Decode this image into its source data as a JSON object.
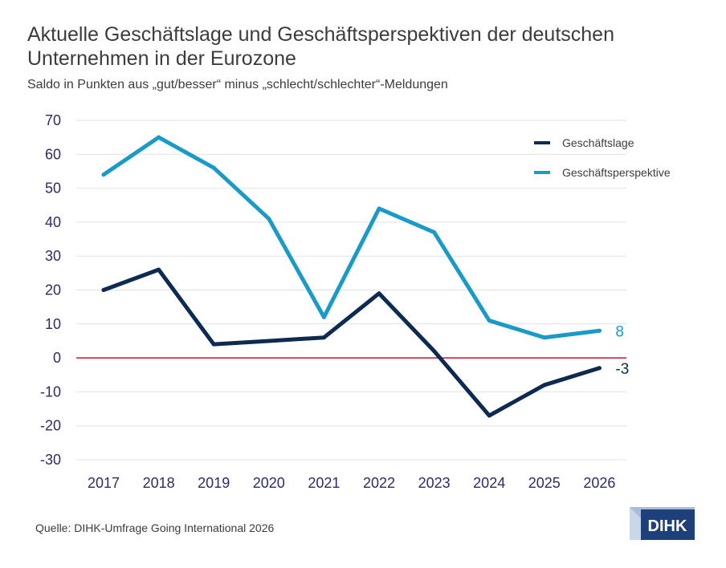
{
  "title": "Aktuelle Geschäftslage und Geschäftsperspektiven der deutschen Unternehmen in der Eurozone",
  "subtitle": "Saldo in Punkten aus „gut/besser“ minus „schlecht/schlechter“-Meldungen",
  "source": "Quelle: DIHK-Umfrage Going International 2026",
  "logo_text": "DIHK",
  "colors": {
    "lage": "#0d2b52",
    "perspektive": "#1a9ac8",
    "zero_line": "#c8102e",
    "grid": "#e2e2e2",
    "tick": "#2c2c6a"
  },
  "chart_data": {
    "type": "line",
    "x": [
      "2017",
      "2018",
      "2019",
      "2020",
      "2021",
      "2022",
      "2023",
      "2024",
      "2025",
      "2026"
    ],
    "ylim": [
      -30,
      70
    ],
    "yticks": [
      "70",
      "60",
      "50",
      "40",
      "30",
      "20",
      "10",
      "0",
      "-10",
      "-20",
      "-30"
    ],
    "grid": true,
    "legend_position": "top-right",
    "series": [
      {
        "name": "Geschäftslage",
        "color": "#0d2b52",
        "values": [
          20,
          26,
          4,
          5,
          6,
          19,
          2,
          -17,
          -8,
          -3
        ],
        "end_label": "-3"
      },
      {
        "name": "Geschäftsperspektive",
        "color": "#1a9ac8",
        "values": [
          54,
          65,
          56,
          41,
          12,
          44,
          37,
          11,
          6,
          8
        ],
        "end_label": "8"
      }
    ]
  }
}
